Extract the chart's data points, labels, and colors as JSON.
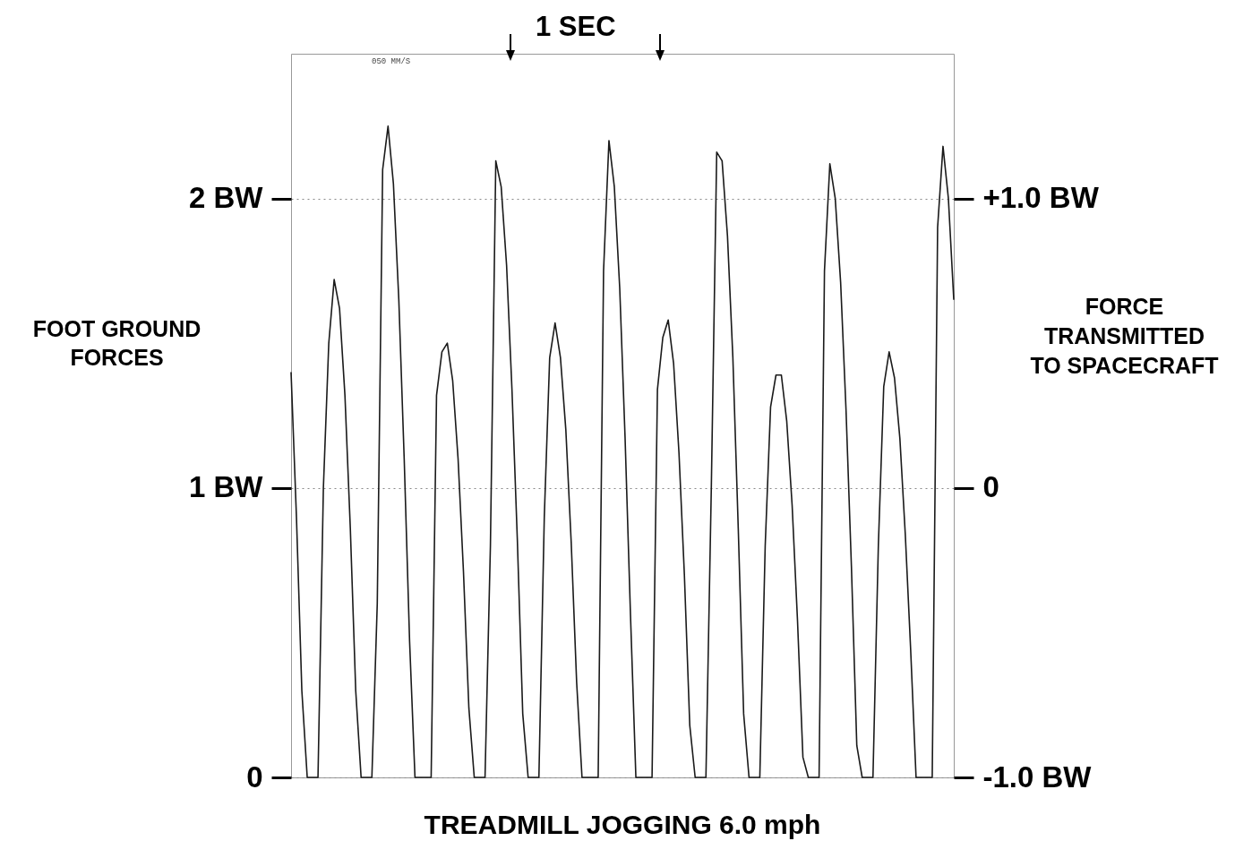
{
  "chart_data": {
    "type": "line",
    "title": "TREADMILL JOGGING 6.0 mph",
    "ylabel": "FOOT GROUND FORCES",
    "y2label": "FORCE TRANSMITTED TO SPACECRAFT",
    "annotations": [
      "1 SEC",
      "050 MM/S"
    ],
    "categories": [
      null,
      null,
      null,
      null,
      null,
      null,
      null,
      null,
      null,
      null,
      null,
      null,
      null,
      null,
      null,
      null,
      null,
      null,
      null,
      null,
      null,
      null,
      null,
      null,
      null,
      null,
      null,
      null,
      null,
      null,
      null,
      null,
      null,
      null,
      null,
      null,
      null,
      null,
      null,
      null,
      null,
      null,
      null,
      null,
      null,
      null,
      null,
      null,
      null,
      null,
      null,
      null,
      null,
      null,
      null,
      null,
      null,
      null,
      null,
      null,
      null,
      null,
      null,
      null,
      null,
      null,
      null,
      null,
      null,
      null,
      null,
      null,
      null,
      null,
      null,
      null,
      null,
      null,
      null,
      null,
      null,
      null,
      null,
      null,
      null,
      null,
      null,
      null,
      null,
      null,
      null,
      null,
      null,
      null,
      null,
      null,
      null,
      null,
      null,
      null,
      null,
      null,
      null,
      null,
      null,
      null,
      null,
      null,
      null,
      null,
      null,
      null,
      null,
      null,
      null,
      null,
      null,
      null,
      null,
      null,
      null,
      null,
      null,
      null
    ],
    "series": [
      {
        "color": "#1a1a1a",
        "values": [
          1.4,
          0.9,
          0.3,
          0,
          0,
          0,
          1.0,
          1.5,
          1.72,
          1.62,
          1.32,
          0.86,
          0.3,
          0,
          0,
          0,
          0.6,
          2.1,
          2.25,
          2.05,
          1.65,
          1.1,
          0.47,
          0,
          0,
          0,
          0,
          1.32,
          1.47,
          1.5,
          1.37,
          1.1,
          0.71,
          0.24,
          0,
          0,
          0,
          0.8,
          2.13,
          2.04,
          1.77,
          1.34,
          0.82,
          0.22,
          0,
          0,
          0,
          0.9,
          1.45,
          1.57,
          1.45,
          1.2,
          0.81,
          0.33,
          0,
          0,
          0,
          0,
          1.75,
          2.2,
          2.04,
          1.69,
          1.17,
          0.56,
          0,
          0,
          0,
          0,
          1.34,
          1.52,
          1.58,
          1.43,
          1.12,
          0.7,
          0.18,
          0,
          0,
          0,
          1.0,
          2.16,
          2.13,
          1.87,
          1.45,
          0.86,
          0.22,
          0,
          0,
          0,
          0.8,
          1.28,
          1.39,
          1.39,
          1.23,
          0.94,
          0.54,
          0.07,
          0,
          0,
          0,
          1.75,
          2.12,
          2.0,
          1.71,
          1.27,
          0.73,
          0.11,
          0,
          0,
          0,
          0.8,
          1.35,
          1.47,
          1.38,
          1.17,
          0.84,
          0.44,
          0,
          0,
          0,
          0,
          1.9,
          2.18,
          2.0,
          1.65
        ]
      }
    ],
    "ylim": [
      0,
      2.5
    ],
    "yticks": [
      0,
      {
        "value": 1,
        "label": "1 BW"
      },
      {
        "value": 2,
        "label": "2 BW"
      }
    ],
    "y2lim": [
      -1,
      1.5
    ],
    "y2ticks": [
      {
        "value": -1,
        "label": "-1.0 BW"
      },
      0,
      {
        "value": 1,
        "label": "+1.0 BW"
      }
    ],
    "tick_labels": "y",
    "grid": "y",
    "legend": false,
    "marker": "none",
    "line_style": "solid"
  }
}
